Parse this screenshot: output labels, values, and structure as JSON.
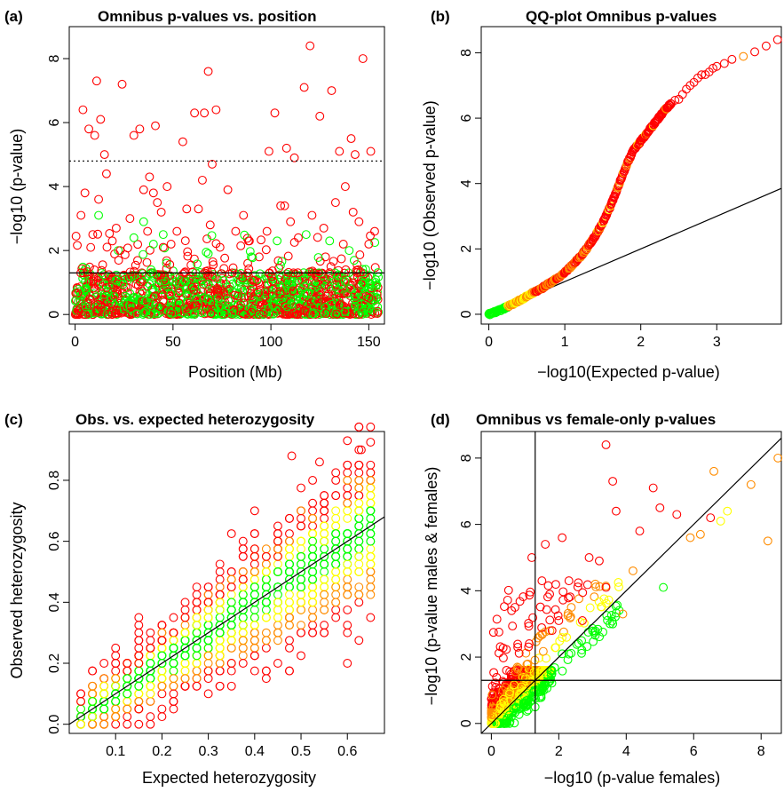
{
  "colors": {
    "red": "#ff0000",
    "orange": "#ff8c00",
    "yellow": "#ffff00",
    "green": "#00ff00",
    "line": "#000000"
  },
  "panels": [
    {
      "id": "a",
      "label": "(a)",
      "title": "Omnibus p-values vs. position",
      "xlabel": "Position (Mb)",
      "ylabel": "−log10 (p-value)",
      "xticks": [
        "0",
        "50",
        "100",
        "150"
      ],
      "yticks": [
        "0",
        "2",
        "4",
        "6",
        "8"
      ]
    },
    {
      "id": "b",
      "label": "(b)",
      "title": "QQ-plot Omnibus p-values",
      "xlabel": "−log10(Expected p-value)",
      "ylabel": "−log10 (Observed p-value)",
      "xticks": [
        "0",
        "1",
        "2",
        "3"
      ],
      "yticks": [
        "0",
        "2",
        "4",
        "6",
        "8"
      ]
    },
    {
      "id": "c",
      "label": "(c)",
      "title": "Obs. vs. expected heterozygosity",
      "xlabel": "Expected heterozygosity",
      "ylabel": "Observed heterozygosity",
      "xticks": [
        "0.1",
        "0.2",
        "0.3",
        "0.4",
        "0.5",
        "0.6"
      ],
      "yticks": [
        "0.0",
        "0.2",
        "0.4",
        "0.6",
        "0.8"
      ]
    },
    {
      "id": "d",
      "label": "(d)",
      "title": "Omnibus vs female-only p-values",
      "xlabel": "−log10 (p-value females)",
      "ylabel": "−log10 (p-value males & females)",
      "xticks": [
        "0",
        "2",
        "4",
        "6",
        "8"
      ],
      "yticks": [
        "0",
        "2",
        "4",
        "6",
        "8"
      ]
    }
  ],
  "chart_data": [
    {
      "type": "scatter",
      "title": "Omnibus p-values vs. position",
      "xlabel": "Position (Mb)",
      "ylabel": "-log10 (p-value)",
      "xlim": [
        -3,
        158
      ],
      "ylim": [
        -0.3,
        9.0
      ],
      "reference_lines": [
        {
          "kind": "horizontal",
          "y": 1.3,
          "style": "solid"
        },
        {
          "kind": "horizontal",
          "y": 4.8,
          "style": "dotted"
        }
      ],
      "background_points": {
        "x_range": [
          0,
          155
        ],
        "y_range": [
          0,
          1.3
        ],
        "colors": [
          "red",
          "green"
        ],
        "description_count": 1500
      },
      "series": [
        {
          "color": "red",
          "x": [
            4,
            7,
            10,
            11,
            13,
            15,
            21,
            24,
            30,
            33,
            35,
            38,
            41,
            42,
            44,
            47,
            55,
            61,
            63,
            66,
            68,
            70,
            72,
            78,
            82,
            86,
            99,
            102,
            105,
            108,
            112,
            117,
            120,
            125,
            131,
            135,
            138,
            141,
            143,
            147,
            151,
            3,
            5,
            9,
            12,
            16,
            19,
            23,
            28,
            37,
            40,
            45,
            49,
            52,
            57,
            65,
            69,
            74,
            89,
            94,
            98,
            107,
            110,
            114,
            121,
            127,
            133,
            137,
            142,
            145,
            150,
            153
          ],
          "y": [
            6.4,
            5.8,
            5.6,
            7.3,
            6.1,
            5.0,
            2.7,
            7.2,
            5.6,
            5.8,
            3.9,
            4.3,
            5.9,
            3.5,
            3.2,
            4.0,
            5.4,
            6.3,
            3.3,
            6.3,
            7.6,
            4.7,
            6.4,
            3.9,
            2.6,
            3.1,
            5.1,
            6.3,
            3.4,
            5.2,
            4.9,
            7.1,
            8.4,
            6.2,
            7.0,
            5.1,
            4.0,
            5.5,
            5.0,
            8.0,
            5.1,
            3.1,
            3.8,
            2.5,
            3.6,
            4.4,
            2.3,
            2.0,
            3.0,
            2.6,
            3.8,
            2.1,
            2.2,
            2.6,
            3.3,
            4.2,
            2.8,
            2.1,
            2.3,
            1.8,
            2.6,
            3.4,
            2.9,
            2.4,
            3.1,
            2.7,
            3.5,
            2.2,
            3.2,
            2.9,
            2.2,
            2.6
          ]
        },
        {
          "color": "green",
          "x": [
            12,
            30,
            35,
            40,
            45,
            68,
            90,
            118,
            130,
            140
          ],
          "y": [
            3.1,
            2.4,
            2.9,
            2.2,
            2.5,
            1.9,
            1.8,
            2.5,
            2.3,
            2.0
          ]
        }
      ]
    },
    {
      "type": "scatter",
      "title": "QQ-plot Omnibus p-values",
      "xlabel": "-log10(Expected p-value)",
      "ylabel": "-log10 (Observed p-value)",
      "xlim": [
        -0.1,
        3.85
      ],
      "ylim": [
        -0.3,
        8.8
      ],
      "reference_lines": [
        {
          "kind": "abline",
          "intercept": 0,
          "slope": 1,
          "style": "solid"
        }
      ],
      "series": [
        {
          "name": "",
          "x": [
            0.0,
            0.1,
            0.2,
            0.3,
            0.4,
            0.5,
            0.6,
            0.7,
            0.8,
            0.9,
            1.0,
            1.1,
            1.2,
            1.3,
            1.4,
            1.5,
            1.6,
            1.7,
            1.8,
            1.9,
            2.0,
            2.1,
            2.2,
            2.3,
            2.4,
            2.5,
            2.6,
            2.7,
            2.8,
            2.9,
            3.0,
            3.2,
            3.5,
            3.8
          ],
          "y": [
            0.0,
            0.08,
            0.18,
            0.3,
            0.42,
            0.55,
            0.68,
            0.8,
            0.95,
            1.1,
            1.28,
            1.5,
            1.75,
            2.05,
            2.4,
            2.8,
            3.3,
            3.9,
            4.5,
            5.0,
            5.3,
            5.6,
            5.9,
            6.2,
            6.45,
            6.6,
            6.9,
            7.1,
            7.3,
            7.4,
            7.6,
            7.8,
            8.0,
            8.4
          ]
        }
      ]
    },
    {
      "type": "scatter",
      "title": "Obs. vs. expected heterozygosity",
      "xlabel": "Expected heterozygosity",
      "ylabel": "Observed heterozygosity",
      "xlim": [
        0.0,
        0.68
      ],
      "ylim": [
        -0.03,
        0.96
      ],
      "reference_lines": [
        {
          "kind": "abline",
          "intercept": 0,
          "slope": 1,
          "style": "solid"
        }
      ],
      "cloud": {
        "x_range": [
          0.02,
          0.67
        ],
        "relation": "y ≈ x",
        "spread": 0.12,
        "colors": [
          "red",
          "orange",
          "yellow",
          "green"
        ]
      },
      "outliers": {
        "x": [
          0.6,
          0.48,
          0.54,
          0.63
        ],
        "y": [
          0.93,
          0.88,
          0.86,
          0.9
        ]
      }
    },
    {
      "type": "scatter",
      "title": "Omnibus vs female-only p-values",
      "xlabel": "-log10 (p-value females)",
      "ylabel": "-log10 (p-value males & females)",
      "xlim": [
        -0.3,
        8.6
      ],
      "ylim": [
        -0.3,
        8.8
      ],
      "reference_lines": [
        {
          "kind": "abline",
          "intercept": 0,
          "slope": 1,
          "style": "solid"
        },
        {
          "kind": "vertical",
          "x": 1.3,
          "style": "solid"
        },
        {
          "kind": "horizontal",
          "y": 1.3,
          "style": "solid"
        }
      ],
      "series": [
        {
          "color": "red",
          "x": [
            3.4,
            1.2,
            3.6,
            3.7,
            1.6,
            2.1,
            2.9,
            3.2,
            4.4,
            5.5,
            6.5,
            2.3,
            1.5,
            0.6,
            0.7,
            2.7,
            3.4,
            1.8,
            2.0,
            4.8,
            5.0
          ],
          "y": [
            8.4,
            5.0,
            7.3,
            6.4,
            5.4,
            5.6,
            5.0,
            4.9,
            5.8,
            6.3,
            6.2,
            4.3,
            4.3,
            3.4,
            3.5,
            3.1,
            4.1,
            2.8,
            3.1,
            7.1,
            6.5
          ]
        },
        {
          "color": "orange",
          "x": [
            6.6,
            7.7,
            8.2,
            8.5,
            5.9,
            6.2,
            4.2,
            3.9
          ],
          "y": [
            7.6,
            7.2,
            5.5,
            8.0,
            5.6,
            5.7,
            4.6,
            3.3
          ]
        },
        {
          "color": "yellow",
          "x": [
            6.8,
            7.0
          ],
          "y": [
            6.1,
            6.4
          ]
        },
        {
          "color": "green",
          "x": [
            5.1,
            3.6,
            2.1
          ],
          "y": [
            4.1,
            3.0,
            2.1
          ]
        }
      ]
    }
  ]
}
